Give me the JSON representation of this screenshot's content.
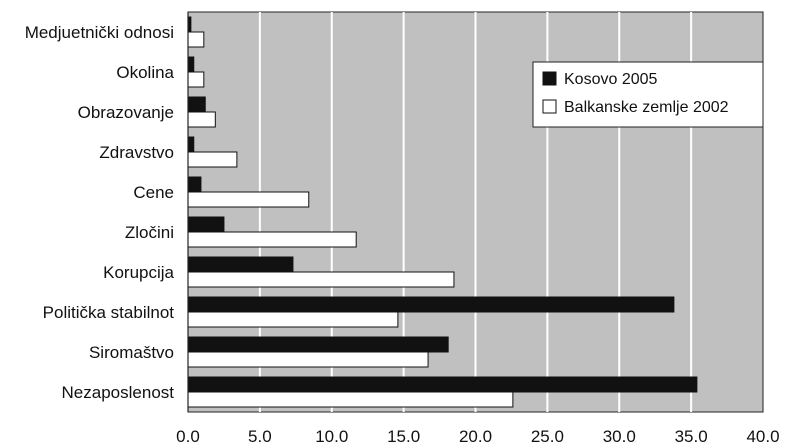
{
  "chart_data": {
    "type": "bar",
    "orientation": "horizontal",
    "categories": [
      "Medjuetnički odnosi",
      "Okolina",
      "Obrazovanje",
      "Zdravstvo",
      "Cene",
      "Zločini",
      "Korupcija",
      "Politička stabilnot",
      "Siromaštvo",
      "Nezaposlenost"
    ],
    "series": [
      {
        "name": "Kosovo 2005",
        "color": "#111111",
        "values": [
          0.2,
          0.4,
          1.2,
          0.4,
          0.9,
          2.5,
          7.3,
          33.8,
          18.1,
          35.4
        ]
      },
      {
        "name": "Balkanske zemlje 2002",
        "color": "#ffffff",
        "values": [
          1.1,
          1.1,
          1.9,
          3.4,
          8.4,
          11.7,
          18.5,
          14.6,
          16.7,
          22.6
        ]
      }
    ],
    "x_ticks": [
      "0.0",
      "5.0",
      "10.0",
      "15.0",
      "20.0",
      "25.0",
      "30.0",
      "35.0",
      "40.0"
    ],
    "xlim": [
      0,
      40
    ],
    "xlabel": "",
    "ylabel": "",
    "title": "",
    "grid": "vertical",
    "legend_position": "top-right",
    "plot_background": "#c0c0c0",
    "gridline_color": "#ffffff"
  }
}
